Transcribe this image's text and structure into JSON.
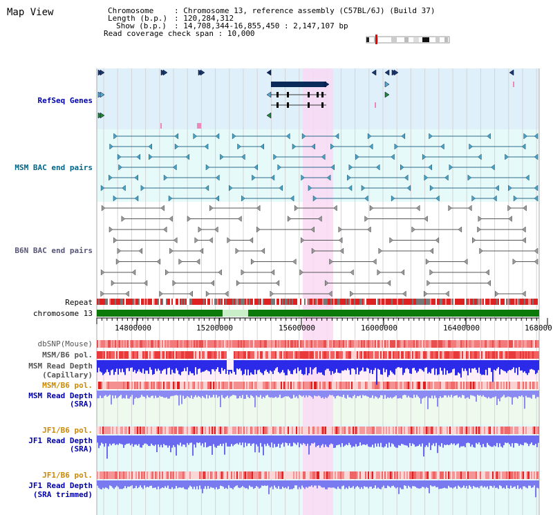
{
  "title": "Map View",
  "info": {
    "chromosome_key": "Chromosome",
    "chromosome_val": ": Chromosome 13, reference assembly (C57BL/6J) (Build 37)",
    "length_key": "Length (b.p.)",
    "length_val": ": 120,284,312",
    "show_key": "Show (b.p.)",
    "show_val": ": 14,708,344-16,855,450 : 2,147,107 bp",
    "coverage_key": "Read coverage check span",
    "coverage_val": ": 10,000"
  },
  "tracks": {
    "refseq": "RefSeq Genes",
    "msm_bac": "MSM BAC end pairs",
    "b6n_bac": "B6N BAC end pairs",
    "repeat": "Repeat",
    "chromosome": "chromosome 13",
    "dbsnp": "dbSNP(Mouse)",
    "msm_b6_pol_1": "MSM/B6 pol.",
    "msm_read_depth_cap_1": "MSM Read Depth",
    "msm_read_depth_cap_2": "(Capillary)",
    "msm_b6_pol_2": "MSM/B6 pol.",
    "msm_read_depth_sra_1": "MSM Read Depth",
    "msm_read_depth_sra_2": "(SRA)",
    "jf1_b6_pol_1": "JF1/B6 pol.",
    "jf1_read_depth_sra_1": "JF1 Read Depth",
    "jf1_read_depth_sra_2": "(SRA)",
    "jf1_b6_pol_2": "JF1/B6 pol.",
    "jf1_read_depth_trim_1": "JF1 Read Depth",
    "jf1_read_depth_trim_2": "(SRA trimmed)"
  },
  "axis": {
    "ticks": [
      "14800000",
      "15200000",
      "15600000",
      "16000000",
      "16400000",
      "168000"
    ]
  },
  "colors": {
    "refseq_bg": "#dff0fa",
    "msm_bg": "#e6fafa",
    "b6n_bg": "#ffffff",
    "highlight": "#f9d9f3",
    "chrom_green": "#0b7a0b",
    "chrom_light": "#c8efc8",
    "snp_red": "#f08080",
    "depth_blue": "#2222ee",
    "depth_light_blue": "#8888f0",
    "jf1_label": "#cc8800",
    "msm_label": "#0000aa",
    "bac_label": "#006688",
    "b6n_label": "#555577"
  }
}
